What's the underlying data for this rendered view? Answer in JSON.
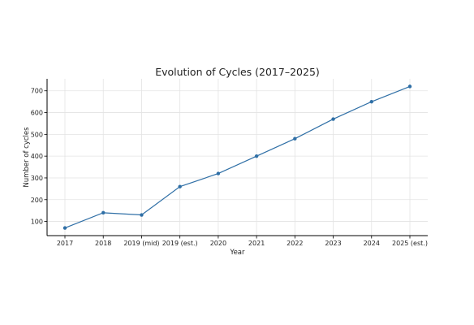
{
  "chart_data": {
    "type": "line",
    "title": "Evolution of Cycles (2017–2025)",
    "xlabel": "Year",
    "ylabel": "Number of cycles",
    "categories": [
      "2017",
      "2018",
      "2019 (mid)",
      "2019 (est.)",
      "2020",
      "2021",
      "2022",
      "2023",
      "2024",
      "2025 (est.)"
    ],
    "series": [
      {
        "values": [
          70,
          140,
          130,
          260,
          320,
          400,
          480,
          570,
          650,
          720
        ]
      }
    ],
    "yticks": [
      100,
      200,
      300,
      400,
      500,
      600,
      700
    ],
    "ylim": [
      35,
      755
    ],
    "grid": true,
    "colors": {
      "line": "#2f6fa6",
      "grid": "#e3e3e3",
      "axis": "#000000"
    }
  }
}
